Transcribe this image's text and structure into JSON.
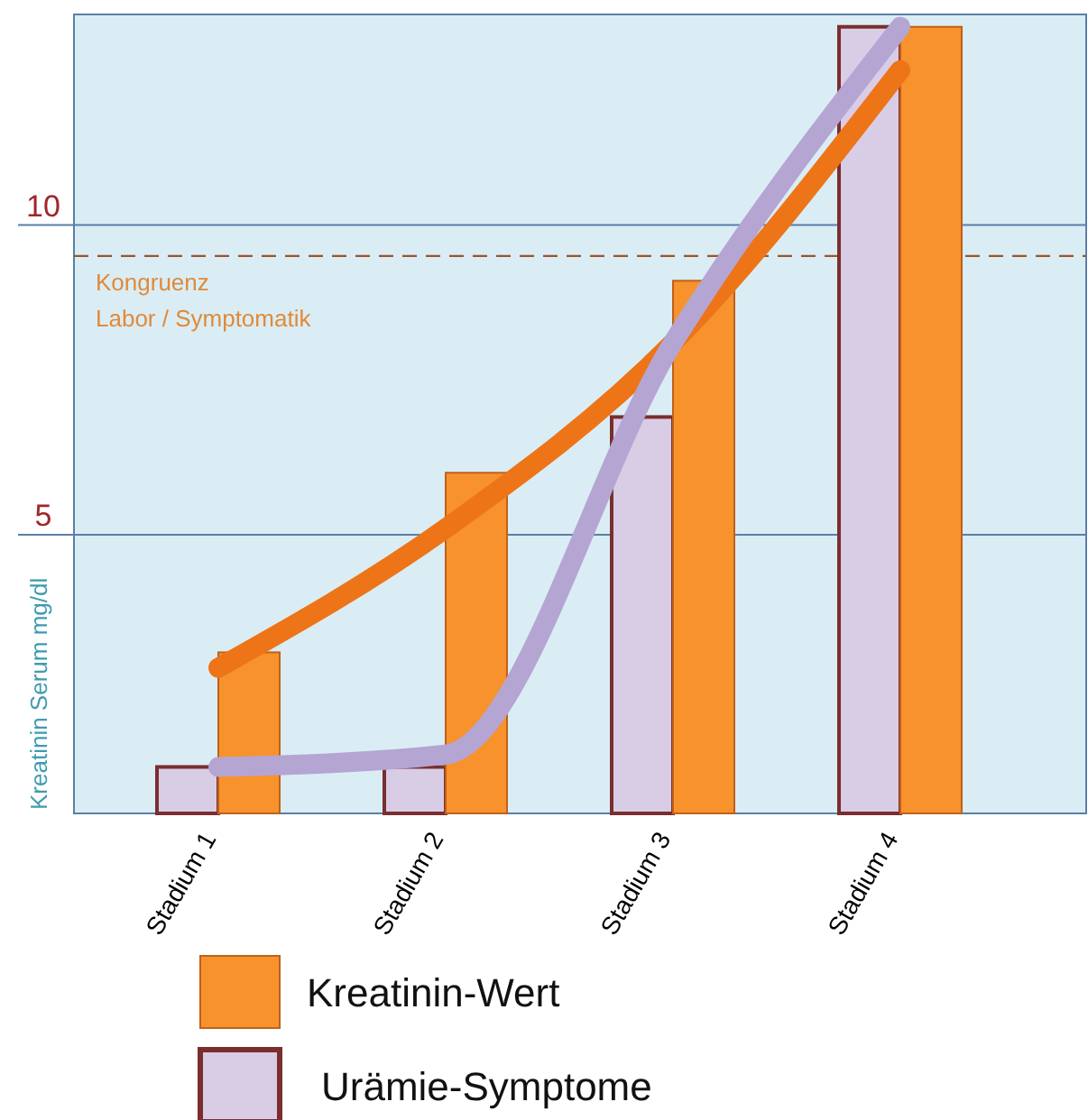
{
  "chart_data": {
    "type": "bar",
    "ylabel": "Kreatinin Serum mg/dl",
    "categories": [
      "Stadium 1",
      "Stadium 2",
      "Stadium 3",
      "Stadium 4"
    ],
    "series": [
      {
        "name": "Urämie-Symptome",
        "color": "#d9cde6",
        "values": [
          1.25,
          1.25,
          6.9,
          13.2
        ]
      },
      {
        "name": "Kreatinin-Wert",
        "color": "#f7922d",
        "values": [
          3.1,
          6.0,
          9.1,
          13.2
        ]
      },
      {
        "type": "line",
        "color": "#ee7418",
        "values": [
          2.85,
          5.1,
          8.1,
          12.5
        ]
      },
      {
        "type": "line",
        "color": "#b5a5d3",
        "values": [
          1.25,
          1.45,
          8.1,
          13.2
        ]
      }
    ],
    "ylim": [
      0.5,
      13.4
    ],
    "yticks": [
      5,
      10
    ],
    "grid": "y",
    "legend": "bottom",
    "ref_lines": [
      {
        "axis": "y",
        "value": 9.5,
        "label": "Kongruenz\nLabor / Symptomatik",
        "color": "#a0522d",
        "line_style": "dashed"
      }
    ]
  }
}
